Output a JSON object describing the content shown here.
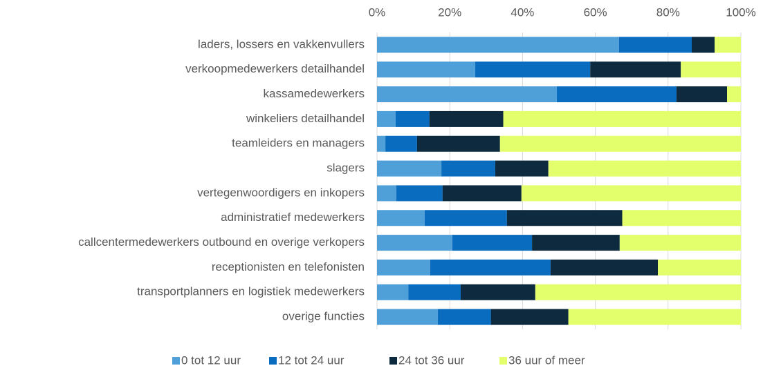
{
  "chart_data": {
    "type": "stacked_bar_horizontal",
    "categories": [
      "laders, lossers en vakkenvullers",
      "verkoopmedewerkers detailhandel",
      "kassamedewerkers",
      "winkeliers detailhandel",
      "teamleiders en managers",
      "slagers",
      "vertegenwoordigers en inkopers",
      "administratief medewerkers",
      "callcentermedewerkers outbound en overige verkopers",
      "receptionisten en telefonisten",
      "transportplanners en logistiek medewerkers",
      "overige functies"
    ],
    "series": [
      {
        "name": "0 tot 12 uur",
        "color": "#4f9fd8",
        "values": [
          66.5,
          27,
          49.4,
          5.1,
          2.3,
          17.7,
          5.3,
          13.1,
          20.7,
          14.6,
          8.6,
          16.7
        ]
      },
      {
        "name": "12 tot 24 uur",
        "color": "#0a6cbf",
        "values": [
          20,
          31.6,
          32.9,
          9.3,
          8.7,
          14.8,
          12.7,
          22.6,
          21.9,
          33.1,
          14.4,
          14.6
        ]
      },
      {
        "name": "24 tot 36 uur",
        "color": "#0d2a3f",
        "values": [
          6.3,
          24.9,
          13.9,
          20.3,
          22.8,
          14.6,
          21.7,
          31.7,
          24.1,
          29.5,
          20.5,
          21.3
        ]
      },
      {
        "name": "36 uur of meer",
        "color": "#e3ff6b",
        "values": [
          7.2,
          16.5,
          3.8,
          65.3,
          66.2,
          52.9,
          60.3,
          32.6,
          33.3,
          22.8,
          56.5,
          47.4
        ]
      }
    ],
    "xlim": [
      0,
      100
    ],
    "xticks": [
      {
        "value": 0,
        "label": "0%"
      },
      {
        "value": 20,
        "label": "20%"
      },
      {
        "value": 40,
        "label": "40%"
      },
      {
        "value": 60,
        "label": "60%"
      },
      {
        "value": 80,
        "label": "80%"
      },
      {
        "value": 100,
        "label": "100%"
      }
    ],
    "grid": true,
    "legend": "bottom"
  }
}
